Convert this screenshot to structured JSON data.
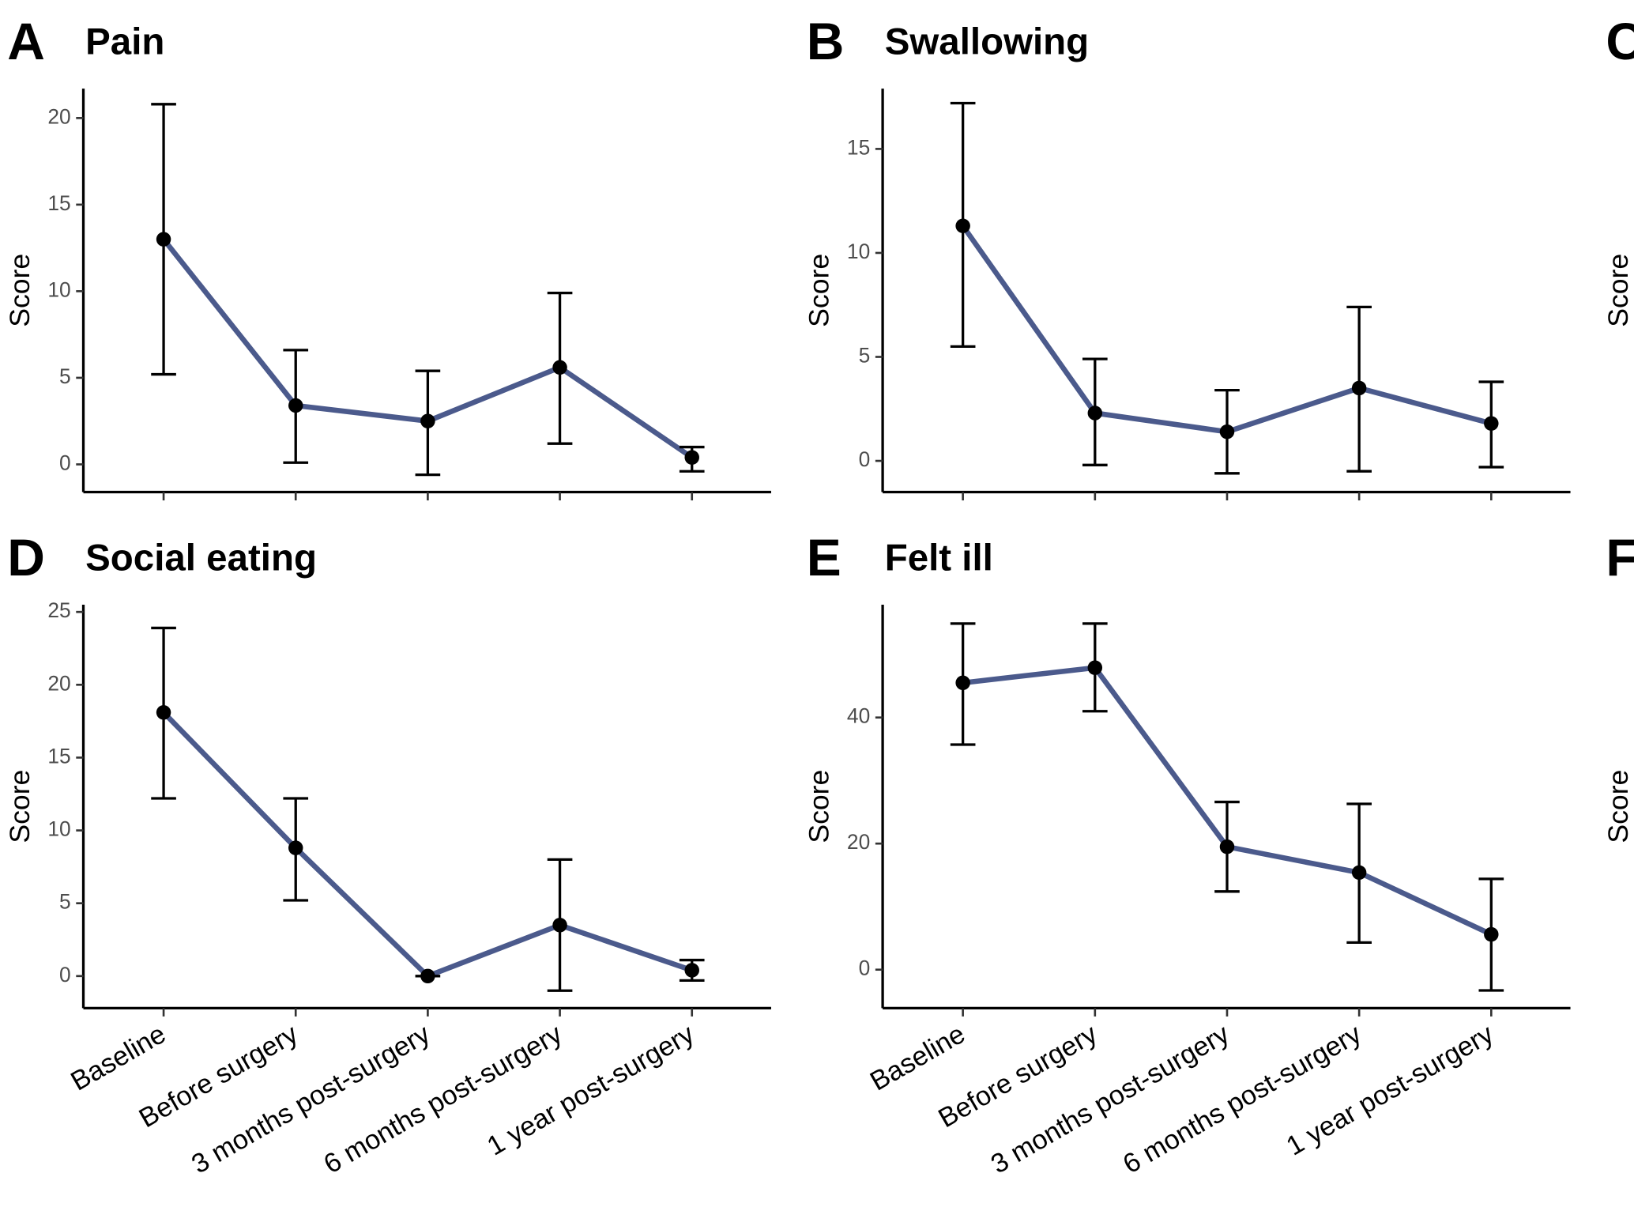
{
  "chart_data": [
    {
      "type": "line",
      "panel": "A",
      "title": "Pain",
      "ylabel": "Score",
      "color": "#4b5a8c",
      "values": [
        13.0,
        3.4,
        2.5,
        5.6,
        0.4
      ],
      "error_low": [
        5.2,
        0.1,
        -0.6,
        1.2,
        -0.4
      ],
      "error_high": [
        20.8,
        6.6,
        5.4,
        9.9,
        1.0
      ],
      "ylim": [
        -1.6,
        21.7
      ],
      "yticks": [
        0,
        5,
        10,
        15,
        20
      ]
    },
    {
      "type": "line",
      "panel": "B",
      "title": "Swallowing",
      "ylabel": "Score",
      "color": "#4b5a8c",
      "values": [
        11.3,
        2.3,
        1.4,
        3.5,
        1.8
      ],
      "error_low": [
        5.5,
        -0.2,
        -0.6,
        -0.5,
        -0.3
      ],
      "error_high": [
        17.2,
        4.9,
        3.4,
        7.4,
        3.8
      ],
      "ylim": [
        -1.5,
        17.9
      ],
      "yticks": [
        0,
        5,
        10,
        15
      ]
    },
    {
      "panel": "C",
      "ylabel": "Score"
    },
    {
      "type": "line",
      "panel": "D",
      "title": "Social eating",
      "ylabel": "Score",
      "color": "#4b5a8c",
      "categories": [
        "Baseline",
        "Before surgery",
        "3 months post-surgery",
        "6 months post-surgery",
        "1 year post-surgery"
      ],
      "values": [
        18.1,
        8.8,
        0,
        3.5,
        0.4
      ],
      "error_low": [
        12.2,
        5.2,
        0,
        -1.0,
        -0.3
      ],
      "error_high": [
        23.9,
        12.2,
        0,
        8.0,
        1.1
      ],
      "ylim": [
        -2.2,
        25.5
      ],
      "yticks": [
        0,
        5,
        10,
        15,
        20,
        25
      ]
    },
    {
      "type": "line",
      "panel": "E",
      "title": "Felt ill",
      "ylabel": "Score",
      "color": "#4b5a8c",
      "categories": [
        "Baseline",
        "Before surgery",
        "3 months post-surgery",
        "6 months post-surgery",
        "1 year post-surgery"
      ],
      "values": [
        45.5,
        47.9,
        19.5,
        15.4,
        5.6
      ],
      "error_low": [
        35.7,
        41.0,
        12.4,
        4.3,
        -3.3
      ],
      "error_high": [
        54.9,
        54.9,
        26.6,
        26.3,
        14.4
      ],
      "ylim": [
        -6.1,
        57.9
      ],
      "yticks": [
        0,
        20,
        40
      ]
    },
    {
      "panel": "F",
      "ylabel": "Score"
    }
  ]
}
